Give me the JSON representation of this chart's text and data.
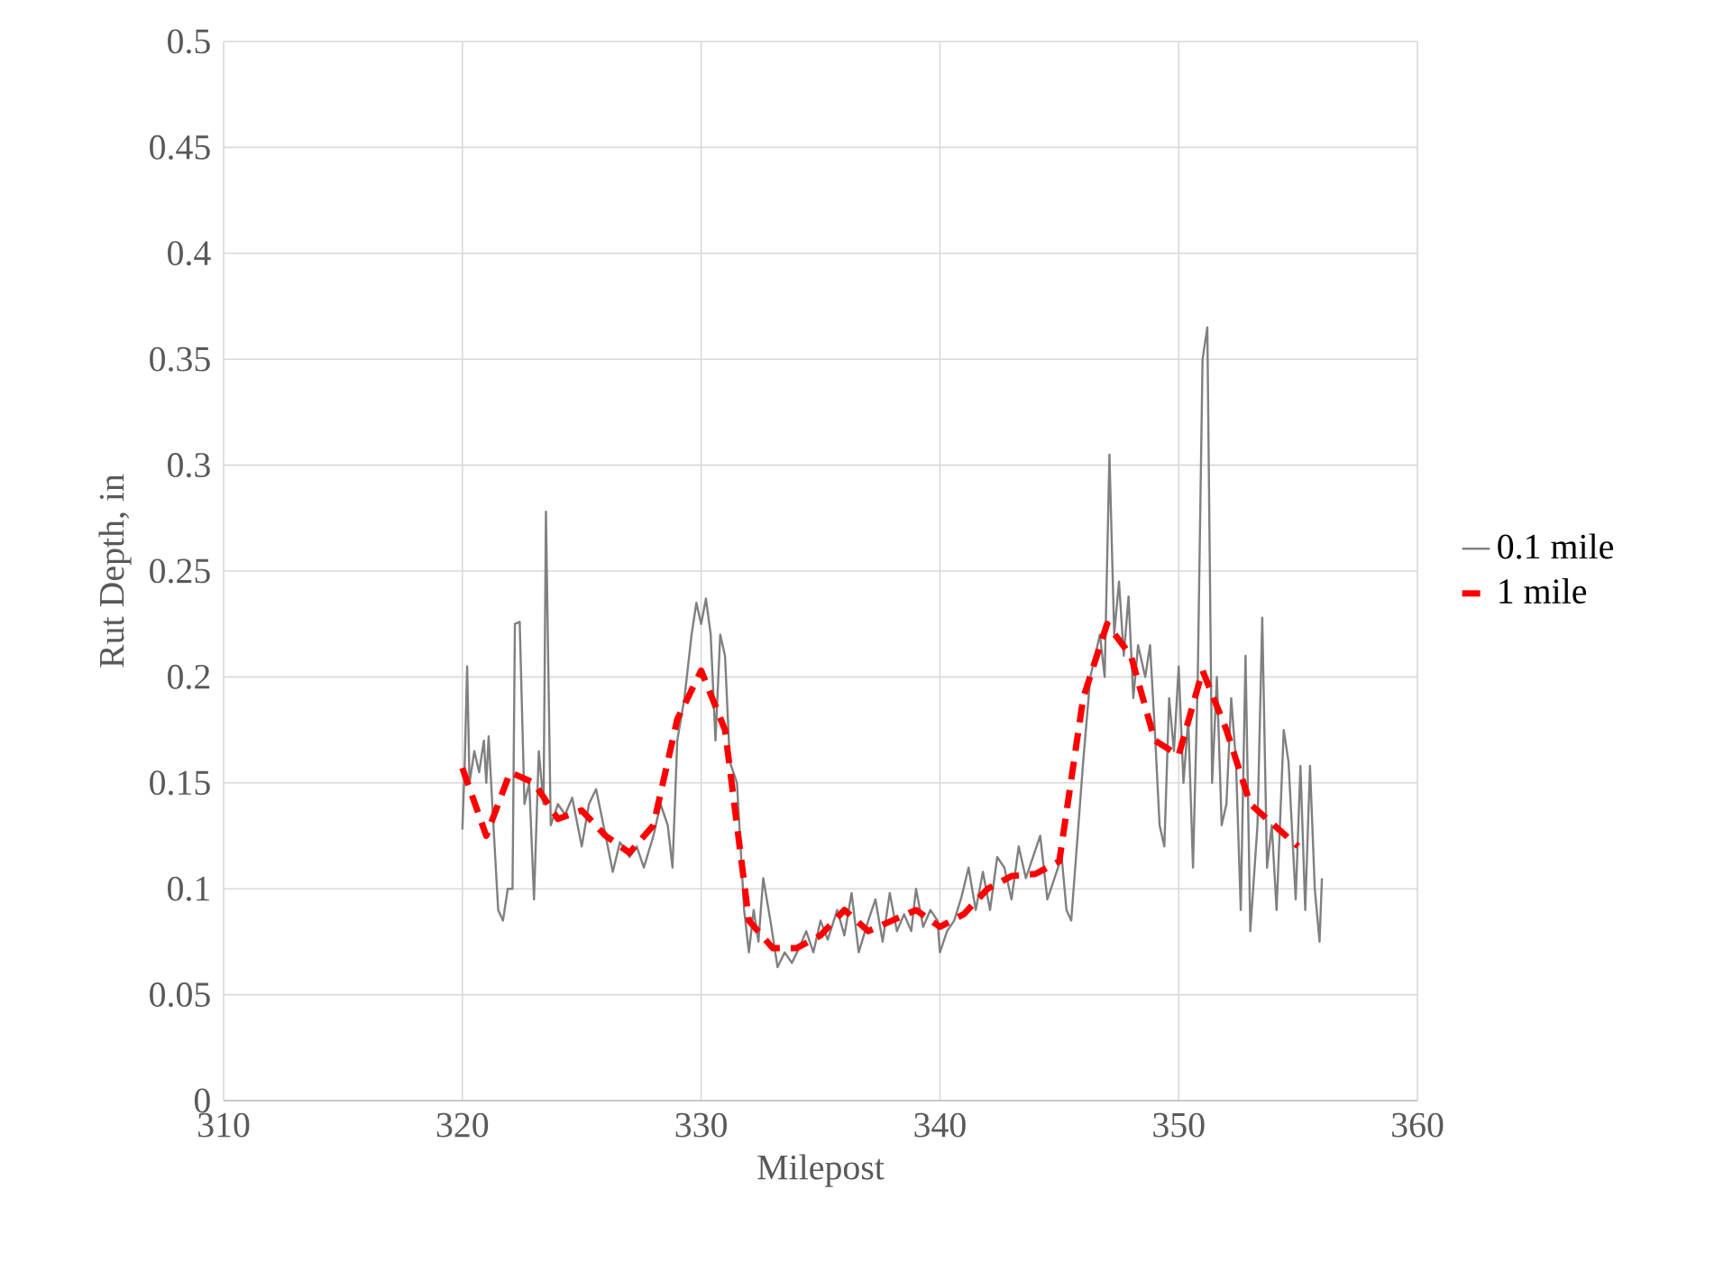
{
  "chart_data": {
    "type": "line",
    "xlabel": "Milepost",
    "ylabel": "Rut Depth, in",
    "xlim": [
      310,
      360
    ],
    "ylim": [
      0,
      0.5
    ],
    "xticks": [
      310,
      320,
      330,
      340,
      350,
      360
    ],
    "yticks": [
      0,
      0.05,
      0.1,
      0.15,
      0.2,
      0.25,
      0.3,
      0.35,
      0.4,
      0.45,
      0.5
    ],
    "grid": true,
    "legend": "right",
    "marker": "none",
    "series": [
      {
        "name": "0.1 mile",
        "color": "#808080",
        "line_style": "solid",
        "x": [
          320.0,
          320.1,
          320.2,
          320.3,
          320.5,
          320.7,
          320.9,
          321.0,
          321.1,
          321.3,
          321.5,
          321.7,
          321.9,
          322.1,
          322.2,
          322.4,
          322.6,
          322.8,
          323.0,
          323.2,
          323.4,
          323.5,
          323.7,
          324.0,
          324.3,
          324.6,
          325.0,
          325.3,
          325.6,
          326.0,
          326.3,
          326.6,
          327.0,
          327.3,
          327.6,
          328.0,
          328.3,
          328.6,
          328.8,
          329.0,
          329.3,
          329.6,
          329.8,
          330.0,
          330.2,
          330.4,
          330.6,
          330.8,
          331.0,
          331.2,
          331.5,
          331.8,
          332.0,
          332.2,
          332.4,
          332.6,
          332.9,
          333.2,
          333.5,
          333.8,
          334.1,
          334.4,
          334.7,
          335.0,
          335.3,
          335.7,
          336.0,
          336.3,
          336.6,
          337.0,
          337.3,
          337.6,
          337.9,
          338.2,
          338.5,
          338.8,
          339.0,
          339.3,
          339.6,
          339.9,
          340.0,
          340.3,
          340.6,
          340.9,
          341.2,
          341.5,
          341.8,
          342.1,
          342.4,
          342.7,
          343.0,
          343.3,
          343.6,
          343.9,
          344.2,
          344.5,
          344.8,
          345.1,
          345.3,
          345.5,
          345.8,
          346.0,
          346.3,
          346.5,
          346.7,
          346.9,
          347.1,
          347.3,
          347.5,
          347.7,
          347.9,
          348.1,
          348.3,
          348.6,
          348.8,
          349.0,
          349.2,
          349.4,
          349.6,
          349.8,
          350.0,
          350.2,
          350.4,
          350.6,
          350.8,
          351.0,
          351.2,
          351.4,
          351.6,
          351.8,
          352.0,
          352.2,
          352.4,
          352.6,
          352.8,
          353.0,
          353.3,
          353.5,
          353.7,
          353.9,
          354.1,
          354.4,
          354.6,
          354.9,
          355.1,
          355.3,
          355.5,
          355.7,
          355.9,
          356.0
        ],
        "values": [
          0.128,
          0.16,
          0.205,
          0.15,
          0.165,
          0.155,
          0.17,
          0.15,
          0.172,
          0.13,
          0.09,
          0.085,
          0.1,
          0.1,
          0.225,
          0.226,
          0.14,
          0.15,
          0.095,
          0.165,
          0.14,
          0.278,
          0.13,
          0.14,
          0.135,
          0.143,
          0.12,
          0.14,
          0.147,
          0.125,
          0.108,
          0.122,
          0.115,
          0.12,
          0.11,
          0.125,
          0.14,
          0.13,
          0.11,
          0.17,
          0.19,
          0.22,
          0.235,
          0.225,
          0.237,
          0.22,
          0.17,
          0.22,
          0.21,
          0.16,
          0.15,
          0.09,
          0.07,
          0.09,
          0.075,
          0.105,
          0.085,
          0.063,
          0.07,
          0.065,
          0.072,
          0.08,
          0.07,
          0.085,
          0.076,
          0.09,
          0.078,
          0.098,
          0.07,
          0.085,
          0.095,
          0.075,
          0.098,
          0.08,
          0.088,
          0.08,
          0.1,
          0.082,
          0.09,
          0.085,
          0.07,
          0.08,
          0.085,
          0.096,
          0.11,
          0.09,
          0.108,
          0.09,
          0.115,
          0.11,
          0.095,
          0.12,
          0.105,
          0.115,
          0.125,
          0.095,
          0.105,
          0.115,
          0.09,
          0.085,
          0.13,
          0.16,
          0.2,
          0.21,
          0.22,
          0.2,
          0.305,
          0.22,
          0.245,
          0.21,
          0.238,
          0.19,
          0.215,
          0.2,
          0.215,
          0.175,
          0.13,
          0.12,
          0.19,
          0.165,
          0.205,
          0.15,
          0.18,
          0.11,
          0.2,
          0.35,
          0.365,
          0.15,
          0.2,
          0.13,
          0.14,
          0.19,
          0.16,
          0.09,
          0.21,
          0.08,
          0.13,
          0.228,
          0.11,
          0.13,
          0.09,
          0.175,
          0.16,
          0.095,
          0.158,
          0.09,
          0.158,
          0.1,
          0.075,
          0.105
        ]
      },
      {
        "name": "1 mile",
        "color": "#ff0000",
        "line_style": "dashed",
        "x": [
          320,
          321,
          322,
          323,
          324,
          325,
          326,
          327,
          328,
          329,
          330,
          331,
          332,
          333,
          334,
          335,
          336,
          337,
          338,
          339,
          340,
          341,
          342,
          343,
          344,
          345,
          346,
          347,
          348,
          349,
          350,
          351,
          352,
          353,
          354,
          355
        ],
        "values": [
          0.157,
          0.125,
          0.155,
          0.15,
          0.133,
          0.137,
          0.125,
          0.117,
          0.13,
          0.18,
          0.203,
          0.175,
          0.085,
          0.072,
          0.072,
          0.078,
          0.09,
          0.08,
          0.085,
          0.09,
          0.082,
          0.088,
          0.1,
          0.106,
          0.107,
          0.113,
          0.19,
          0.225,
          0.21,
          0.17,
          0.163,
          0.203,
          0.175,
          0.14,
          0.13,
          0.12
        ]
      }
    ]
  }
}
